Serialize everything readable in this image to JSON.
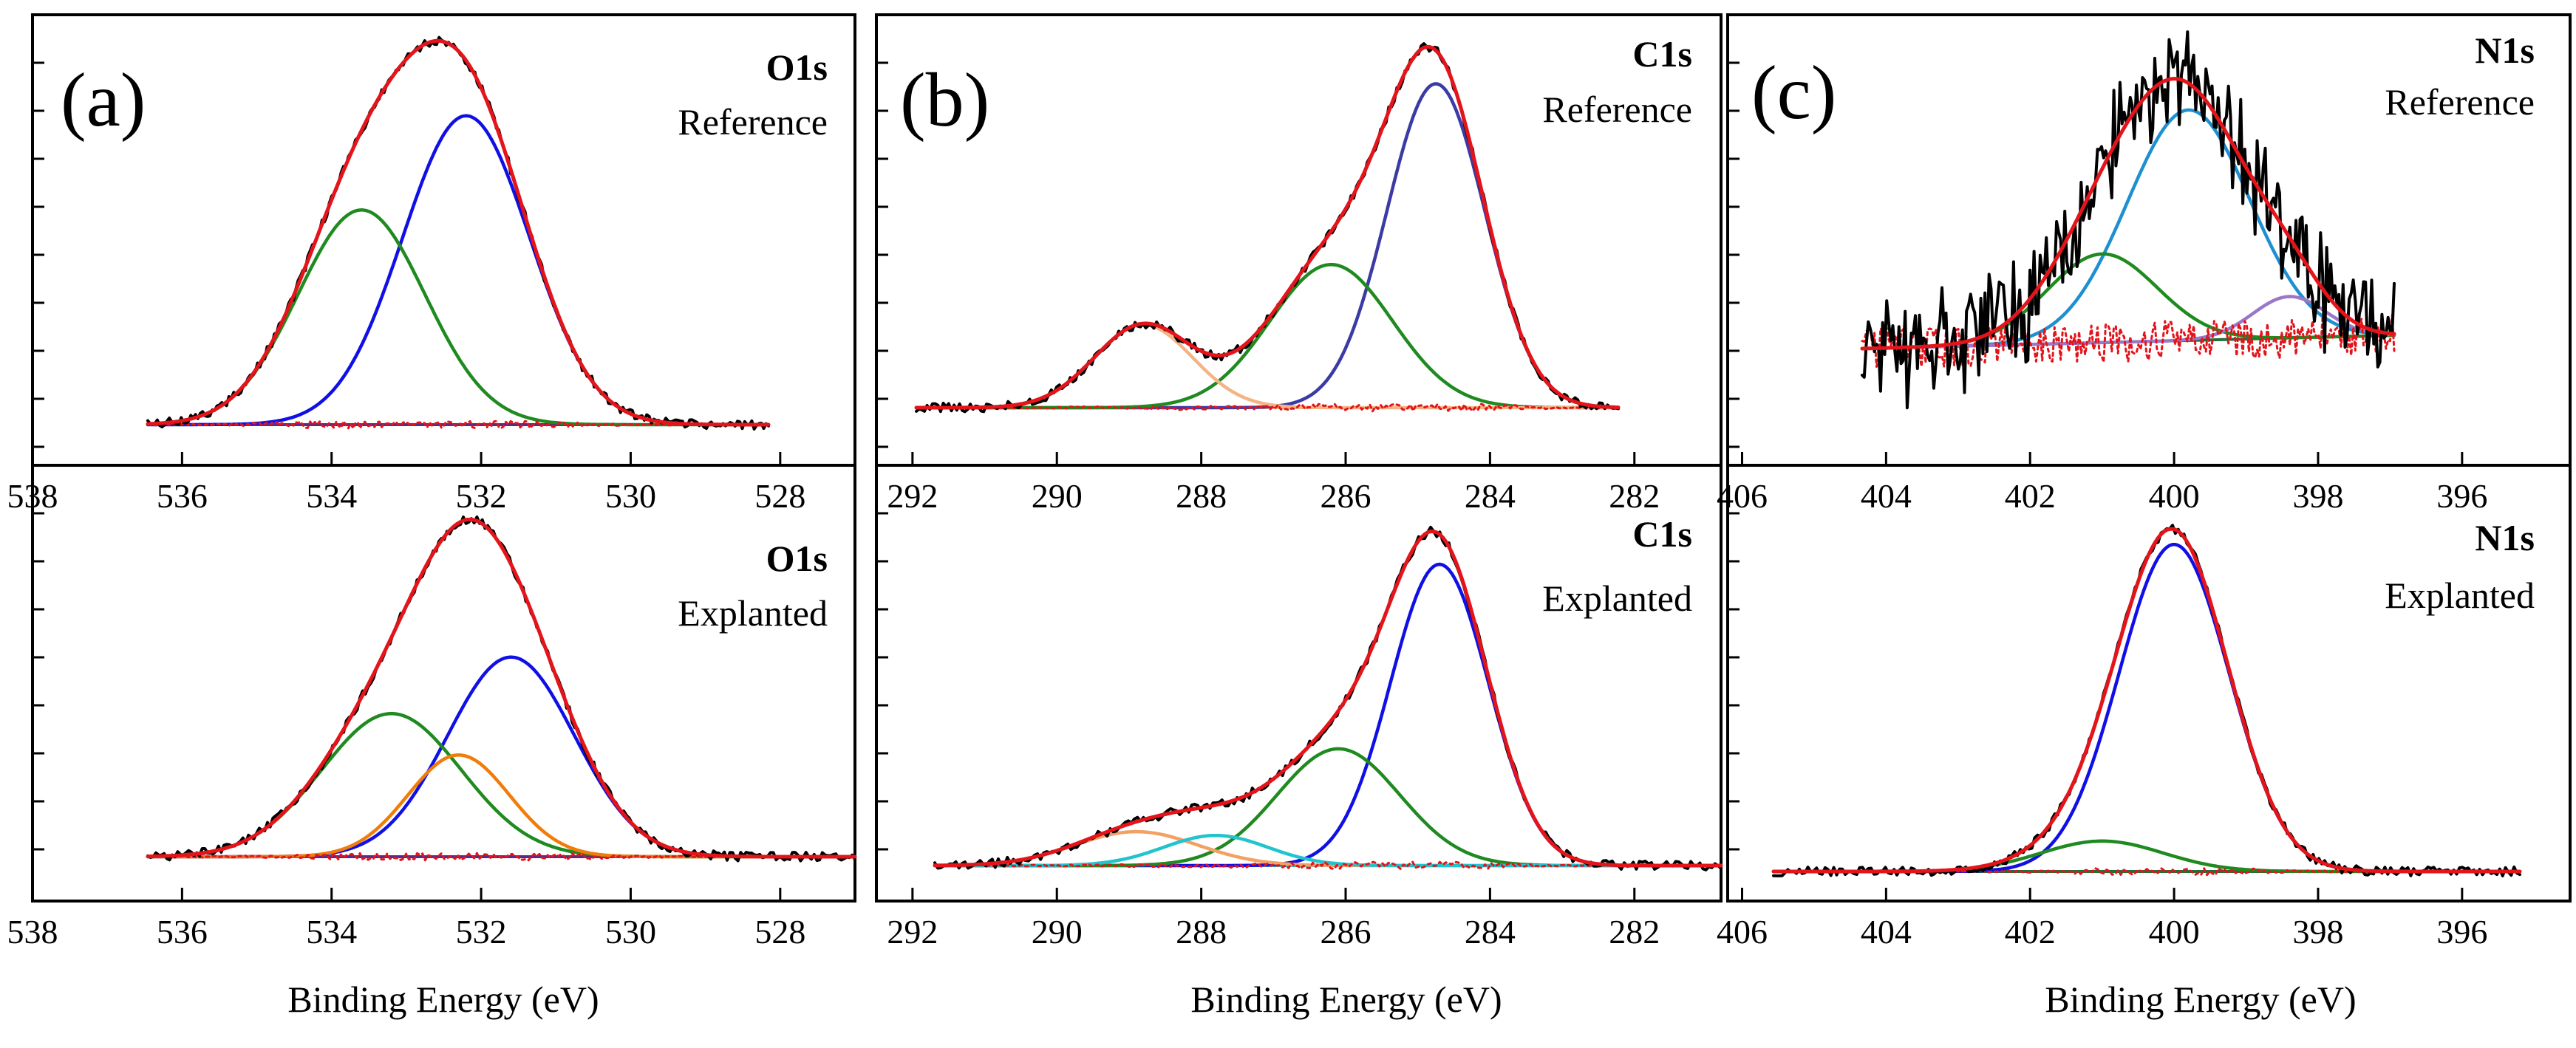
{
  "chart_data": [
    {
      "type": "line",
      "panel": "(a)",
      "element": "O1s",
      "xlabel": "Binding Energy (eV)",
      "xlim": [
        538,
        527
      ],
      "xticks": [
        538,
        536,
        534,
        532,
        530,
        528
      ],
      "subplots": [
        {
          "sample": "Reference",
          "colors": {
            "measured": "#000000",
            "envelope": "#e4141b",
            "residual": "#e4141b",
            "background": "#5b2a86"
          },
          "components": [
            {
              "center": 532.2,
              "fwhm": 2.0,
              "height": 0.82,
              "color": "#1010e6"
            },
            {
              "center": 533.6,
              "fwhm": 2.0,
              "height": 0.57,
              "color": "#1f8a1f"
            }
          ]
        },
        {
          "sample": "Explanted",
          "colors": {
            "measured": "#000000",
            "envelope": "#e4141b",
            "residual": "#e4141b",
            "background": "#5b2a86"
          },
          "components": [
            {
              "center": 531.6,
              "fwhm": 2.0,
              "height": 0.53,
              "color": "#1010e6"
            },
            {
              "center": 533.2,
              "fwhm": 2.2,
              "height": 0.38,
              "color": "#1f8a1f"
            },
            {
              "center": 532.3,
              "fwhm": 1.6,
              "height": 0.27,
              "color": "#f07c0a"
            }
          ]
        }
      ]
    },
    {
      "type": "line",
      "panel": "(b)",
      "element": "C1s",
      "xlabel": "Binding Energy (eV)",
      "xlim": [
        292.5,
        280.8
      ],
      "xticks": [
        292,
        290,
        288,
        286,
        284,
        282
      ],
      "subplots": [
        {
          "sample": "Reference",
          "colors": {
            "measured": "#000000",
            "envelope": "#e4141b",
            "residual": "#e4141b",
            "background": "#f4b483"
          },
          "components": [
            {
              "center": 284.75,
              "fwhm": 1.6,
              "height": 0.86,
              "color": "#3b3ba6"
            },
            {
              "center": 286.2,
              "fwhm": 2.0,
              "height": 0.38,
              "color": "#1f8a1f"
            },
            {
              "center": 288.8,
              "fwhm": 1.6,
              "height": 0.22,
              "color": "#f4b483"
            }
          ]
        },
        {
          "sample": "Explanted",
          "colors": {
            "measured": "#000000",
            "envelope": "#e4141b",
            "residual": "#e4141b",
            "background": "#21c4cc"
          },
          "components": [
            {
              "center": 284.7,
              "fwhm": 1.6,
              "height": 0.8,
              "color": "#1010e6"
            },
            {
              "center": 286.1,
              "fwhm": 2.0,
              "height": 0.31,
              "color": "#1f8a1f"
            },
            {
              "center": 288.9,
              "fwhm": 2.0,
              "height": 0.09,
              "color": "#f4a064"
            },
            {
              "center": 287.8,
              "fwhm": 1.7,
              "height": 0.08,
              "color": "#21c4cc"
            }
          ]
        }
      ]
    },
    {
      "type": "line",
      "panel": "(c)",
      "element": "N1s",
      "xlabel": "Binding Energy (eV)",
      "xlim": [
        406.2,
        394.5
      ],
      "xticks": [
        406,
        404,
        402,
        400,
        398,
        396
      ],
      "subplots": [
        {
          "sample": "Reference",
          "colors": {
            "measured": "#000000",
            "envelope": "#e4141b",
            "residual": "#e4141b",
            "background": "#1f6f3a"
          },
          "components": [
            {
              "center": 399.8,
              "fwhm": 2.0,
              "height": 0.78,
              "color": "#1e8fd0"
            },
            {
              "center": 401.0,
              "fwhm": 1.8,
              "height": 0.3,
              "color": "#1f8a1f"
            },
            {
              "center": 398.4,
              "fwhm": 1.2,
              "height": 0.14,
              "color": "#9a78c8"
            }
          ]
        },
        {
          "sample": "Explanted",
          "colors": {
            "measured": "#000000",
            "envelope": "#e4141b",
            "residual": "#e4141b",
            "background": "#1f6f3a"
          },
          "components": [
            {
              "center": 400.0,
              "fwhm": 1.8,
              "height": 0.86,
              "color": "#1010e6"
            },
            {
              "center": 401.0,
              "fwhm": 2.0,
              "height": 0.08,
              "color": "#1f8a1f"
            }
          ]
        }
      ]
    }
  ]
}
